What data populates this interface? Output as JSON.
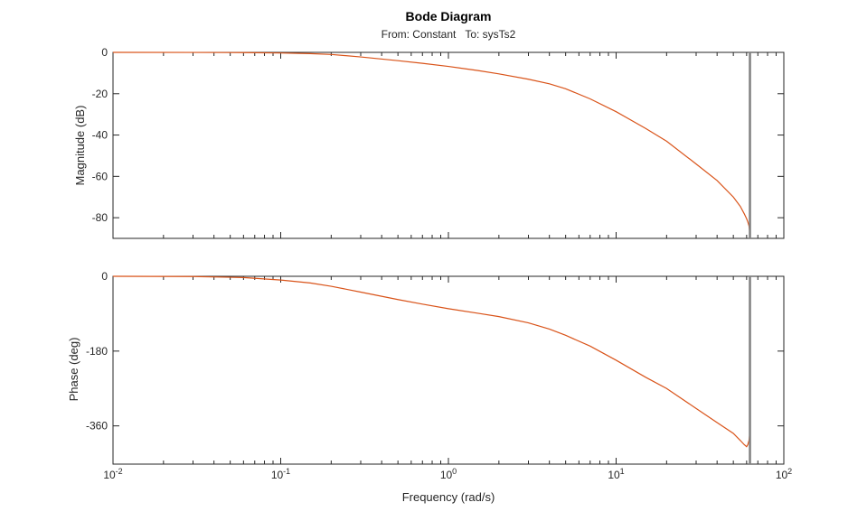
{
  "chart_data": {
    "type": "line",
    "title": "Bode Diagram",
    "subtitle_from": "From: Constant",
    "subtitle_to": "To: sysTs2",
    "xlabel": "Frequency (rad/s)",
    "xscale": "log",
    "xlim": [
      0.01,
      100
    ],
    "x_ticks": [
      {
        "base": "10",
        "exp": "-2"
      },
      {
        "base": "10",
        "exp": "-1"
      },
      {
        "base": "10",
        "exp": "0"
      },
      {
        "base": "10",
        "exp": "1"
      },
      {
        "base": "10",
        "exp": "2"
      }
    ],
    "nyquist_frequency": 62.8,
    "line_color": "#D95319",
    "nyquist_color": "#808080",
    "panels": [
      {
        "name": "magnitude",
        "ylabel": "Magnitude (dB)",
        "ylim": [
          -90,
          0
        ],
        "yticks": [
          0,
          -20,
          -40,
          -60,
          -80
        ],
        "series": {
          "x": [
            0.01,
            0.03,
            0.06,
            0.1,
            0.15,
            0.2,
            0.3,
            0.5,
            0.7,
            1,
            1.5,
            2,
            3,
            4,
            5,
            7,
            10,
            15,
            20,
            30,
            40,
            50,
            55,
            58,
            60,
            61,
            62,
            62.5,
            62.8
          ],
          "y": [
            0,
            -0.02,
            -0.1,
            -0.3,
            -0.6,
            -1,
            -2.2,
            -4,
            -5.3,
            -6.8,
            -8.8,
            -10.4,
            -13,
            -15.2,
            -17.6,
            -22.5,
            -28.7,
            -36.8,
            -43,
            -54,
            -62,
            -70,
            -74.5,
            -78,
            -80.5,
            -82,
            -84,
            -86.5,
            -89
          ]
        }
      },
      {
        "name": "phase",
        "ylabel": "Phase (deg)",
        "ylim": [
          -452,
          0
        ],
        "yticks": [
          0,
          -180,
          -360
        ],
        "series": {
          "x": [
            0.01,
            0.03,
            0.06,
            0.1,
            0.15,
            0.2,
            0.3,
            0.5,
            0.7,
            1,
            1.5,
            2,
            3,
            4,
            5,
            7,
            10,
            15,
            20,
            30,
            40,
            50,
            55,
            58,
            60,
            61,
            62,
            62.5,
            62.8
          ],
          "y": [
            0,
            -0.5,
            -3,
            -9,
            -16,
            -24,
            -38,
            -56,
            -67,
            -78,
            -89,
            -97,
            -112,
            -127,
            -142,
            -168,
            -202,
            -243,
            -270,
            -318,
            -352,
            -378,
            -395,
            -405,
            -410,
            -405,
            -395,
            -382,
            -360
          ]
        }
      }
    ]
  }
}
